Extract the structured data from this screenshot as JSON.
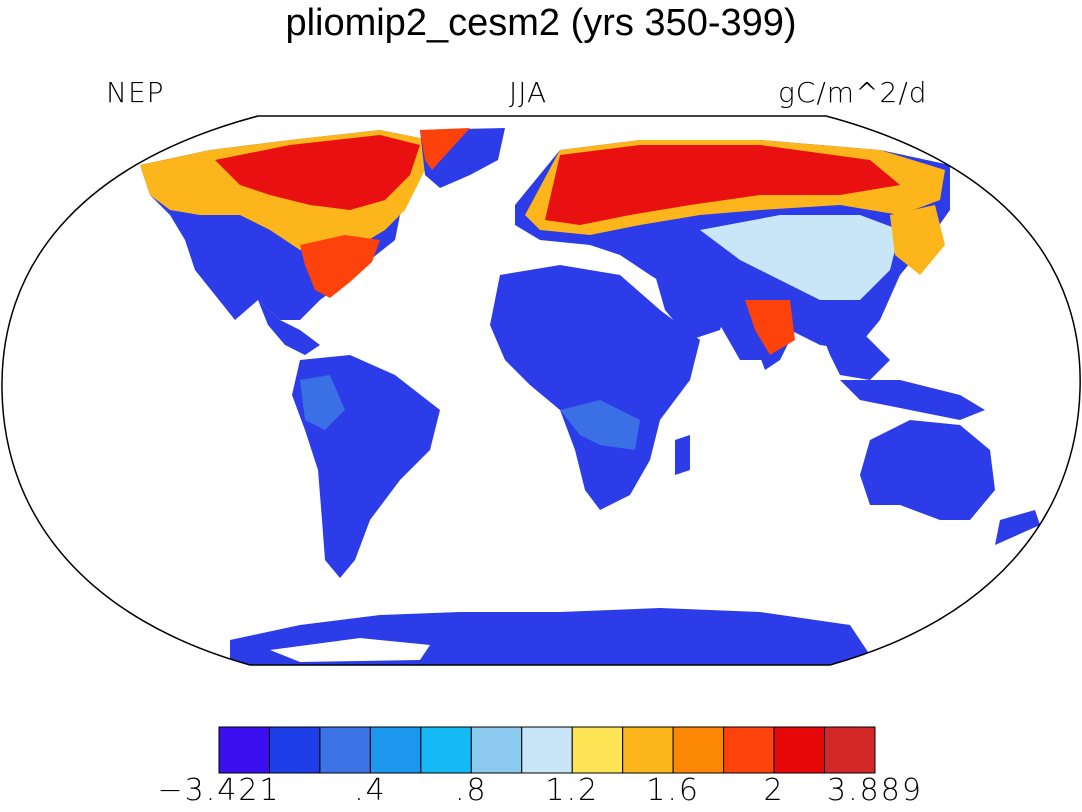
{
  "title": "pliomip2_cesm2 (yrs 350-399)",
  "labels": {
    "variable": "NEP",
    "season": "JJA",
    "units": "gC/m^2/d"
  },
  "colorbar": {
    "colors": [
      "#3b10f0",
      "#1d3ee6",
      "#3b73e6",
      "#1c97f0",
      "#15b9f5",
      "#8ccbef",
      "#c9e6f9",
      "#fde455",
      "#fcb51a",
      "#fb8705",
      "#fe420b",
      "#e70909",
      "#d42727"
    ],
    "ticks": [
      "−3.421",
      ".4",
      ".8",
      "1.2",
      "1.6",
      "2",
      "3.889"
    ]
  },
  "colors": {
    "land_low": "#2535e8",
    "land_mid": "#3b6fe6",
    "land_high": "#e81010",
    "ocean": "#ffffff",
    "coast": "#000000"
  }
}
